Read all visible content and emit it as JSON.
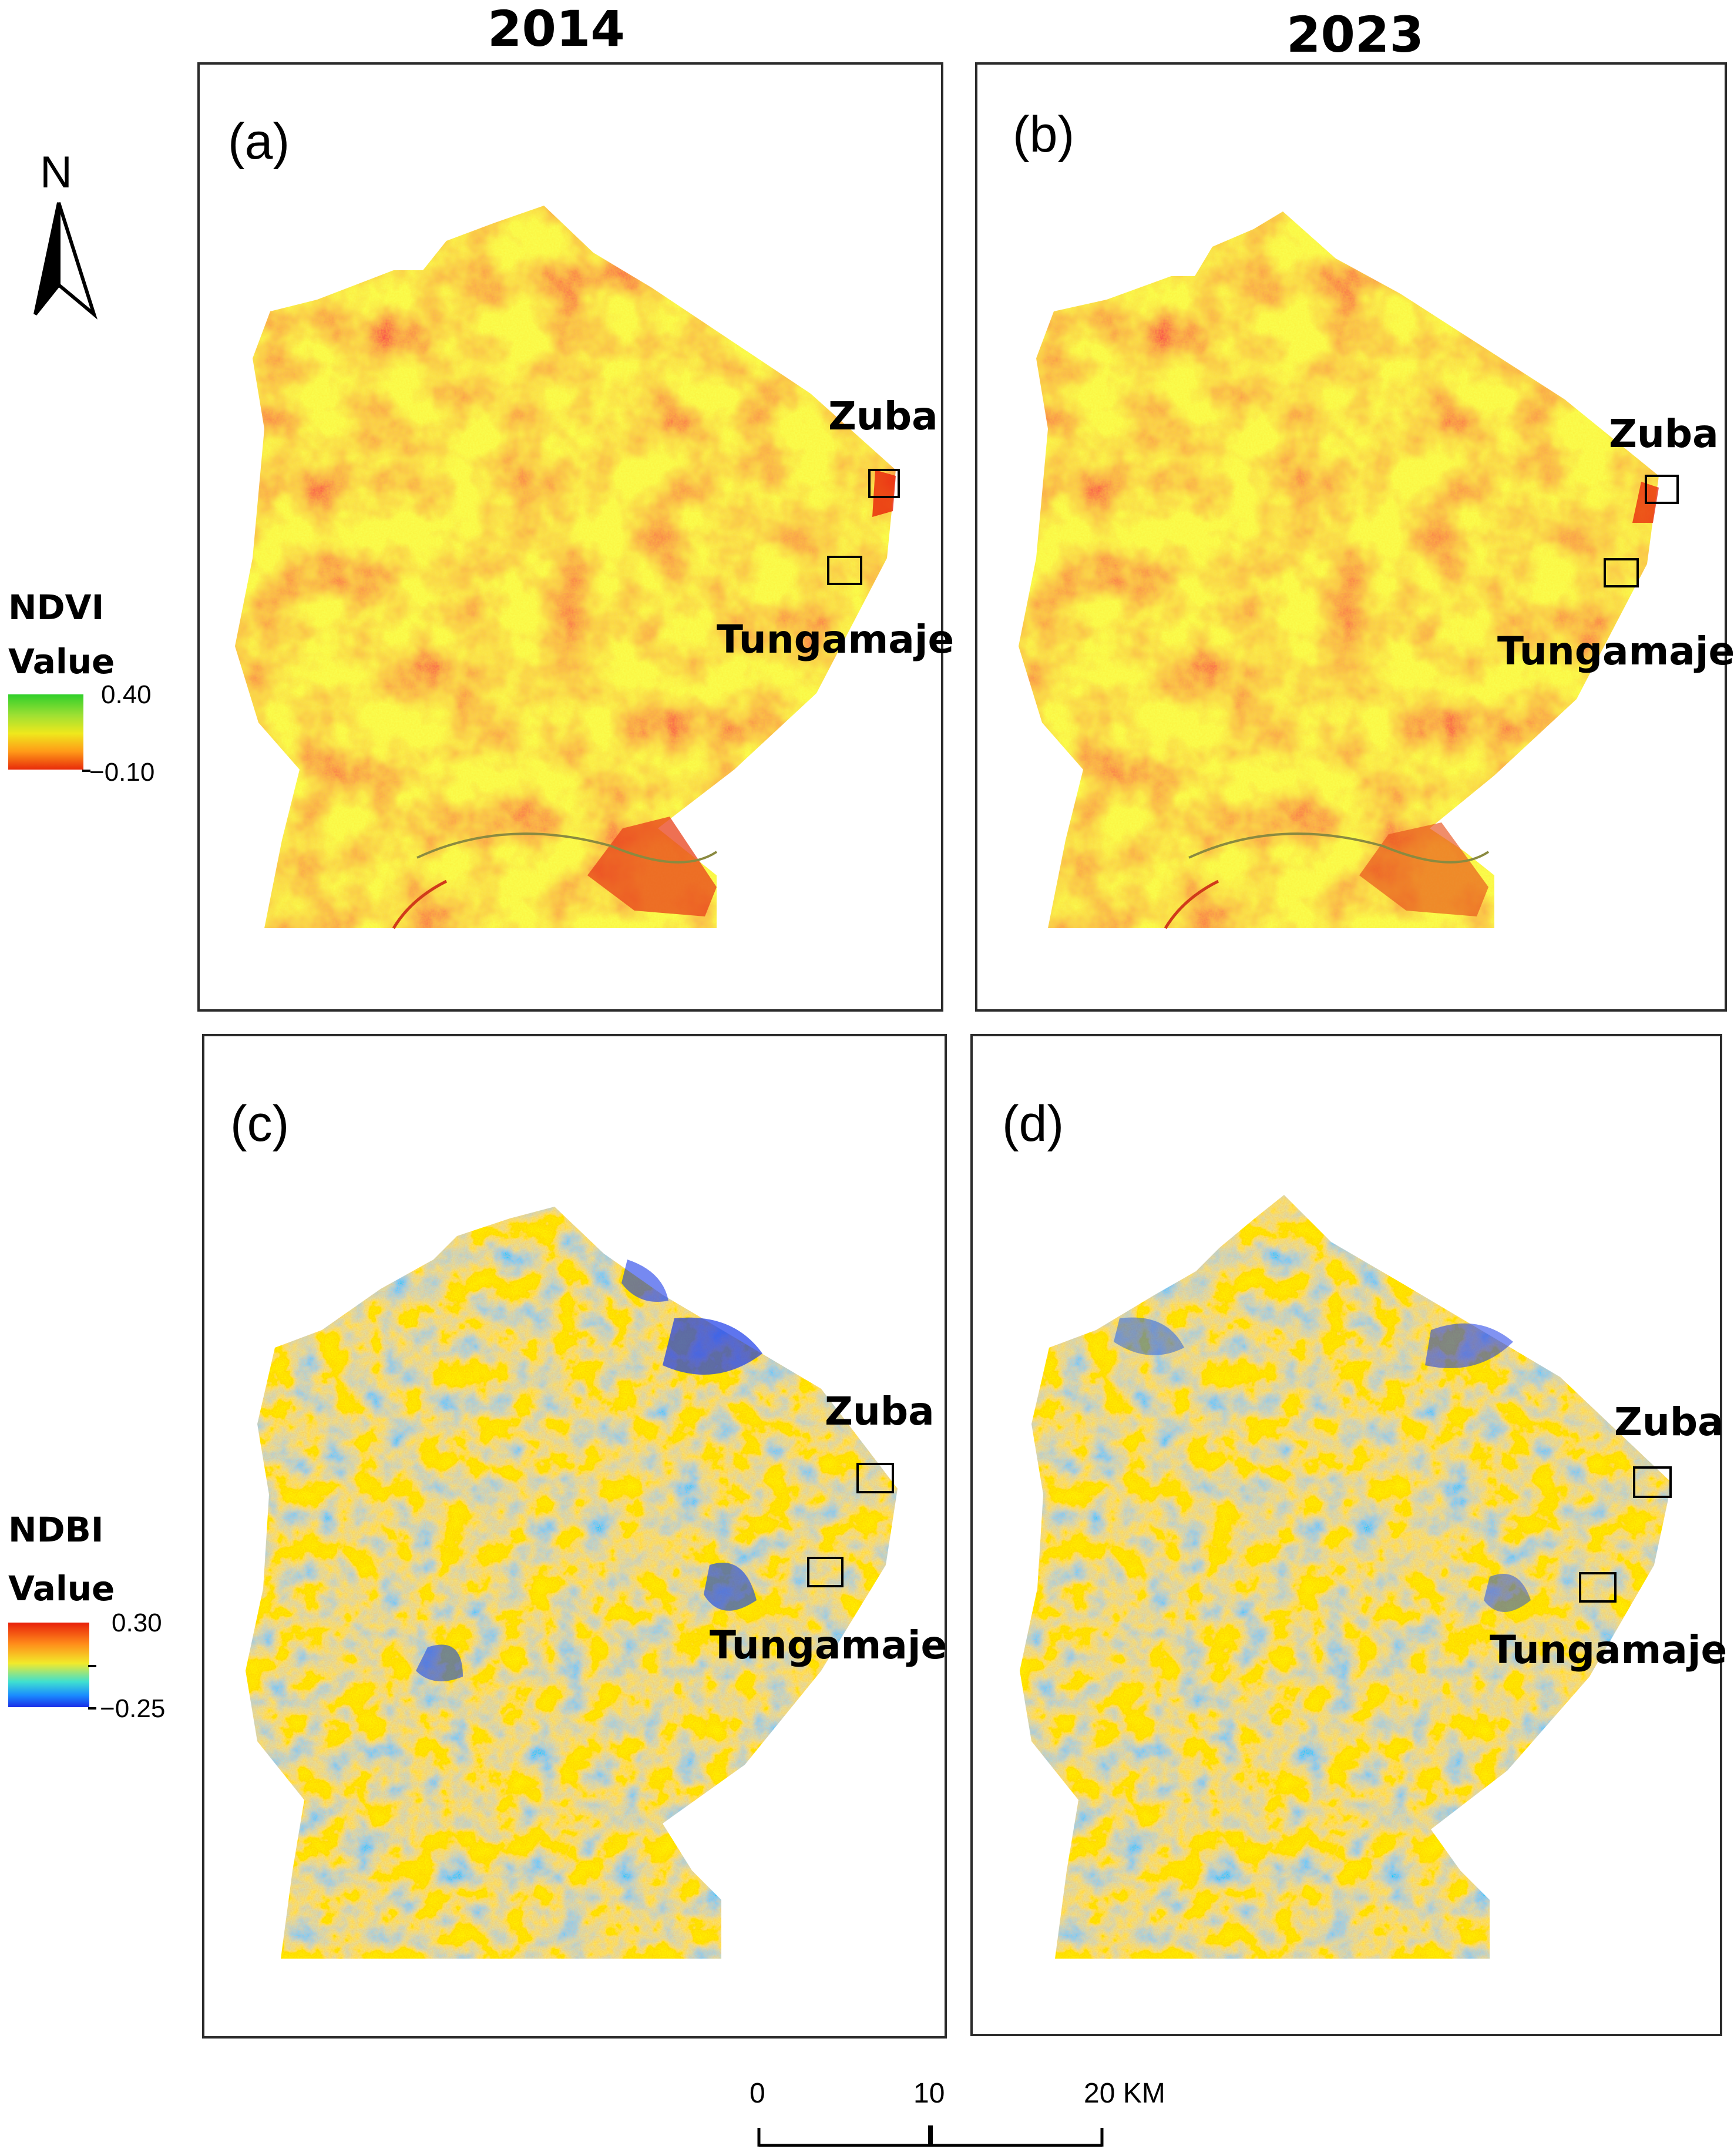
{
  "columns": [
    "2014",
    "2023"
  ],
  "panels": [
    {
      "label": "(a)",
      "index": "NDVI",
      "year": "2014"
    },
    {
      "label": "(b)",
      "index": "NDVI",
      "year": "2023"
    },
    {
      "label": "(c)",
      "index": "NDBI",
      "year": "2014"
    },
    {
      "label": "(d)",
      "index": "NDBI",
      "year": "2023"
    }
  ],
  "places": [
    "Zuba",
    "Tungamaje"
  ],
  "north_arrow": {
    "label": "N",
    "icon": "north-arrow-icon"
  },
  "legends": {
    "ndvi": {
      "title": "NDVI",
      "subtitle": "Value",
      "max": "0.40",
      "min": "−0.10",
      "colors": [
        "#1fc41f",
        "#7ed321",
        "#e8e81a",
        "#ff9a1a",
        "#e82a0a"
      ]
    },
    "ndbi": {
      "title": "NDBI",
      "subtitle": "Value",
      "max": "0.30",
      "min": "−0.25",
      "colors": [
        "#e8200a",
        "#ff8c1a",
        "#f2ea2a",
        "#3fe0d0",
        "#1a8cff",
        "#1a2ee8"
      ]
    }
  },
  "scale_bar": {
    "labels": [
      "0",
      "10",
      "20 KM"
    ]
  }
}
